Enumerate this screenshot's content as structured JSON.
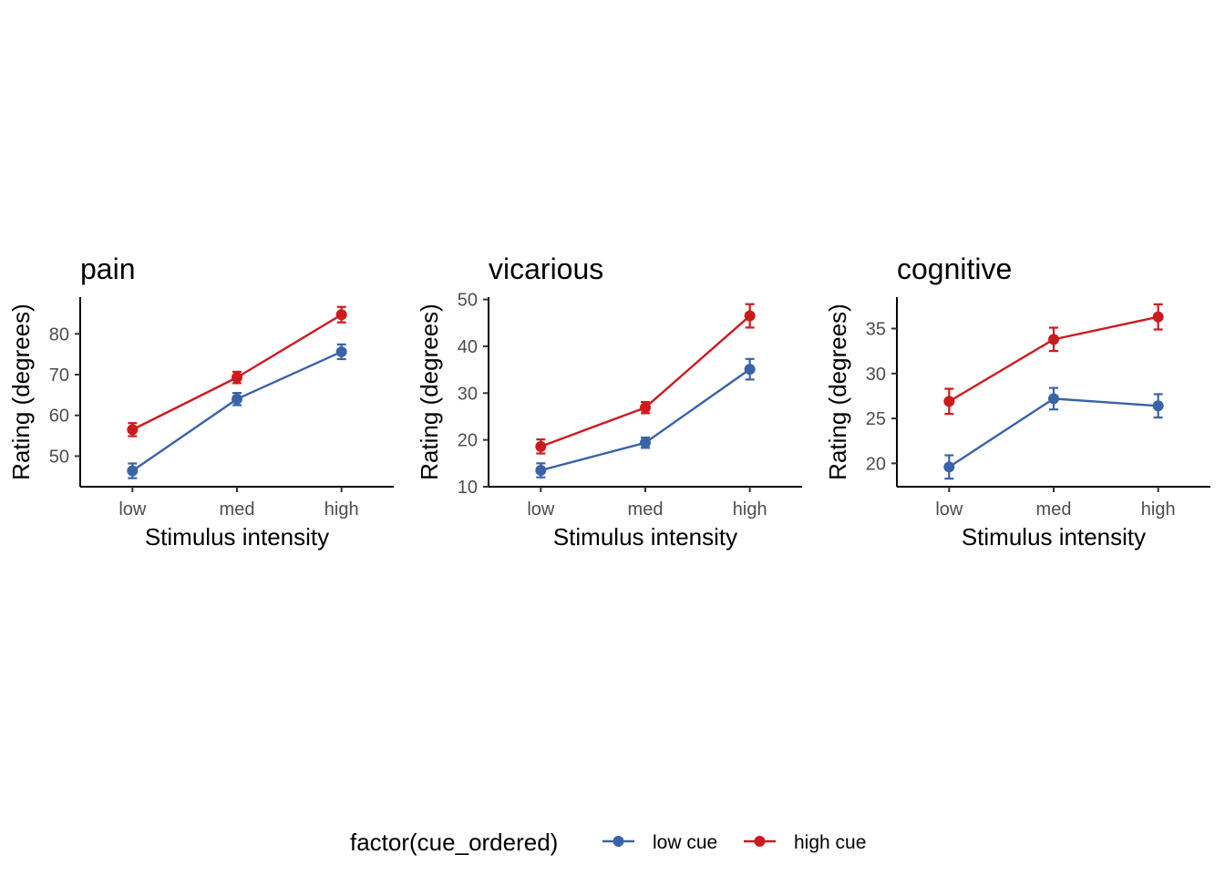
{
  "colors": {
    "low_cue": "#3a63a8",
    "high_cue": "#cb1b1e"
  },
  "legend": {
    "title": "factor(cue_ordered)",
    "items": [
      {
        "key": "low_cue",
        "label": "low cue"
      },
      {
        "key": "high_cue",
        "label": "high cue"
      }
    ],
    "placement": "bottom"
  },
  "chart_data": [
    {
      "type": "line",
      "title": "pain",
      "xlabel": "Stimulus intensity",
      "ylabel": "Rating (degrees)",
      "categories": [
        "low",
        "med",
        "high"
      ],
      "ylim": [
        42.5,
        89
      ],
      "yticks": [
        50,
        60,
        70,
        80
      ],
      "grid": false,
      "series": [
        {
          "name": "low cue",
          "key": "low_cue",
          "values": [
            46.4,
            64.0,
            75.6
          ],
          "err": [
            1.8,
            1.5,
            1.8
          ]
        },
        {
          "name": "high cue",
          "key": "high_cue",
          "values": [
            56.5,
            69.3,
            84.7
          ],
          "err": [
            1.6,
            1.4,
            1.9
          ]
        }
      ]
    },
    {
      "type": "line",
      "title": "vicarious",
      "xlabel": "Stimulus intensity",
      "ylabel": "Rating (degrees)",
      "categories": [
        "low",
        "med",
        "high"
      ],
      "ylim": [
        10,
        50.5
      ],
      "yticks": [
        10,
        20,
        30,
        40,
        50
      ],
      "grid": false,
      "series": [
        {
          "name": "low cue",
          "key": "low_cue",
          "values": [
            13.5,
            19.4,
            35.1
          ],
          "err": [
            1.5,
            1.1,
            2.2
          ]
        },
        {
          "name": "high cue",
          "key": "high_cue",
          "values": [
            18.6,
            26.9,
            46.5
          ],
          "err": [
            1.5,
            1.2,
            2.5
          ]
        }
      ]
    },
    {
      "type": "line",
      "title": "cognitive",
      "xlabel": "Stimulus intensity",
      "ylabel": "Rating (degrees)",
      "categories": [
        "low",
        "med",
        "high"
      ],
      "ylim": [
        17.4,
        38.5
      ],
      "yticks": [
        20,
        25,
        30,
        35
      ],
      "grid": false,
      "series": [
        {
          "name": "low cue",
          "key": "low_cue",
          "values": [
            19.6,
            27.2,
            26.4
          ],
          "err": [
            1.3,
            1.2,
            1.3
          ]
        },
        {
          "name": "high cue",
          "key": "high_cue",
          "values": [
            26.9,
            33.8,
            36.3
          ],
          "err": [
            1.4,
            1.3,
            1.4
          ]
        }
      ]
    }
  ]
}
